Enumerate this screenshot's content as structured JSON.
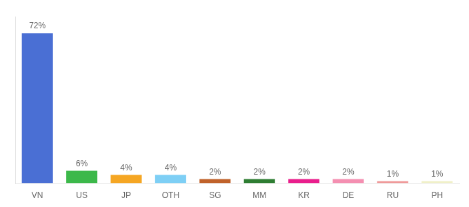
{
  "chart_data": {
    "type": "bar",
    "categories": [
      "VN",
      "US",
      "JP",
      "OTH",
      "SG",
      "MM",
      "KR",
      "DE",
      "RU",
      "PH"
    ],
    "values": [
      72,
      6,
      4,
      4,
      2,
      2,
      2,
      2,
      1,
      1
    ],
    "value_labels": [
      "72%",
      "6%",
      "4%",
      "4%",
      "2%",
      "2%",
      "2%",
      "2%",
      "1%",
      "1%"
    ],
    "colors": [
      "#4a6fd4",
      "#3cb84a",
      "#f5a623",
      "#7ecff5",
      "#c0622a",
      "#2e7d32",
      "#e91e8c",
      "#f48fb1",
      "#ef9a9a",
      "#f0f0c8"
    ],
    "ylim": [
      0,
      80
    ],
    "grid": false,
    "data_labels": true,
    "tick_labels": "x"
  }
}
